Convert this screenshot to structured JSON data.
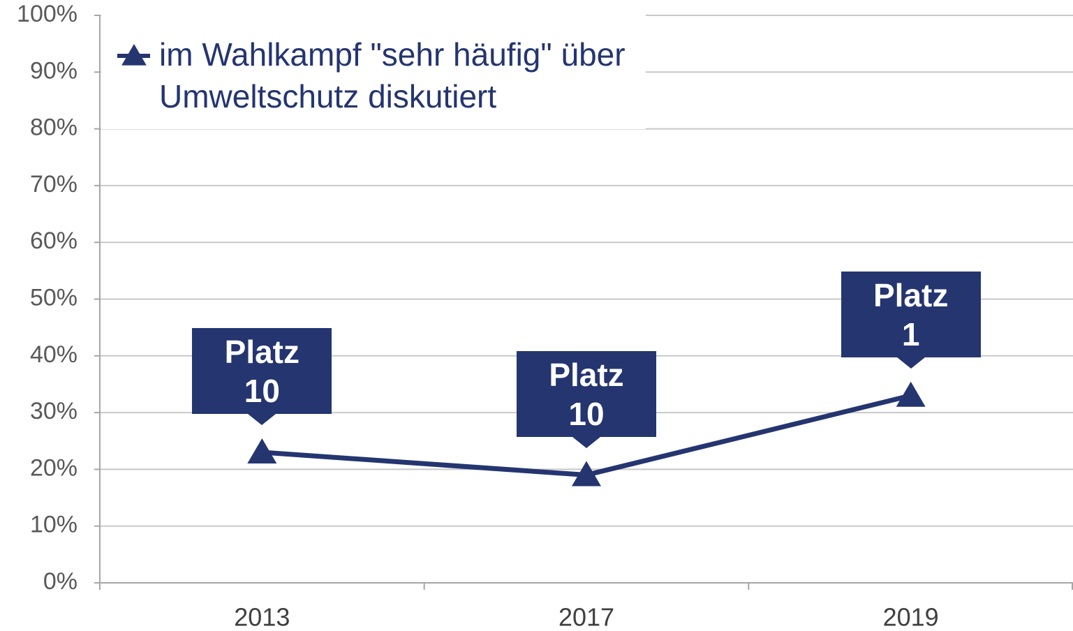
{
  "chart_data": {
    "type": "line",
    "categories": [
      "2013",
      "2017",
      "2019"
    ],
    "series": [
      {
        "name": "im Wahlkampf \"sehr häufig\" über Umweltschutz diskutiert",
        "color": "#243570",
        "values": [
          23,
          19,
          33
        ]
      }
    ],
    "annotations": [
      "Platz 10",
      "Platz 10",
      "Platz 1"
    ],
    "ylim": [
      0,
      100
    ],
    "yticks": [
      {
        "value": 0,
        "label": "0%"
      },
      {
        "value": 10,
        "label": "10%"
      },
      {
        "value": 20,
        "label": "20%"
      },
      {
        "value": 30,
        "label": "30%"
      },
      {
        "value": 40,
        "label": "40%"
      },
      {
        "value": 50,
        "label": "50%"
      },
      {
        "value": 60,
        "label": "60%"
      },
      {
        "value": 70,
        "label": "70%"
      },
      {
        "value": 80,
        "label": "80%"
      },
      {
        "value": 90,
        "label": "90%"
      },
      {
        "value": 100,
        "label": "100%"
      }
    ],
    "grid": true,
    "legend": "top-left"
  }
}
